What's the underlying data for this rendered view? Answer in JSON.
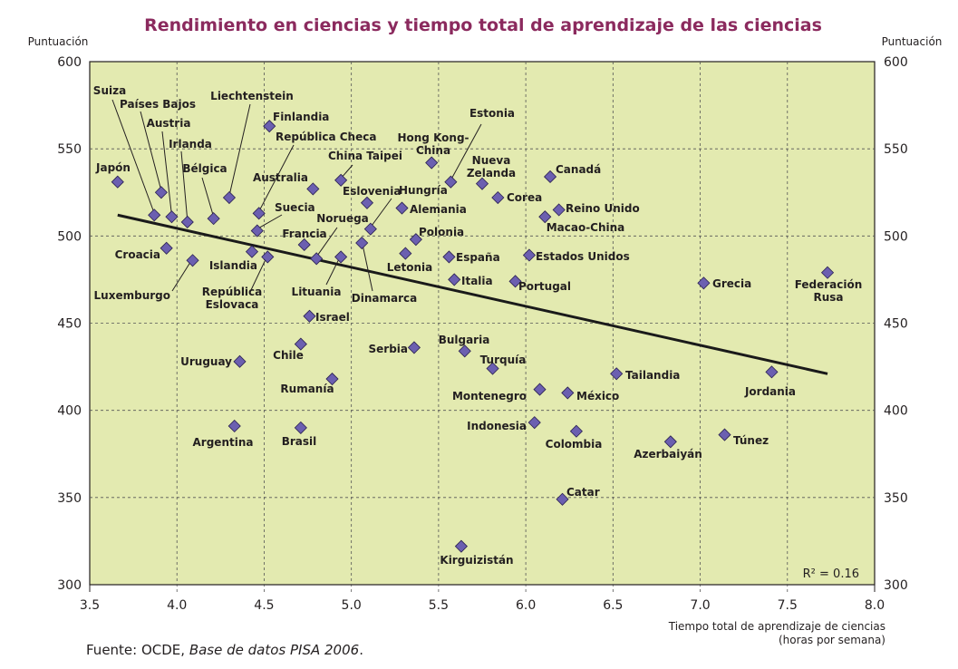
{
  "chart_data": {
    "type": "scatter",
    "title": "Rendimiento en ciencias y tiempo total de aprendizaje de las ciencias",
    "ylabel_left": "Puntuación",
    "ylabel_right": "Puntuación",
    "xlabel": "Tiempo total de aprendizaje de ciencias",
    "xlabel_sub": "(horas por semana)",
    "xlim": [
      3.5,
      8.0
    ],
    "ylim": [
      300,
      600
    ],
    "xticks": [
      "3.5",
      "4.0",
      "4.5",
      "5.0",
      "5.5",
      "6.0",
      "6.5",
      "7.0",
      "7.5",
      "8.0"
    ],
    "yticks": [
      "300",
      "350",
      "400",
      "450",
      "500",
      "550",
      "600"
    ],
    "grid": true,
    "annotation": "R² = 0.16",
    "trendline": {
      "x": [
        3.66,
        7.73
      ],
      "y": [
        512,
        421
      ]
    },
    "colors": {
      "background": "#e3eab0",
      "marker": "#6b5fb0",
      "marker_edge": "#2a2050",
      "title": "#8b2a5e",
      "trend": "#1a1a1a"
    },
    "points": [
      {
        "label": "Japón",
        "x": 3.66,
        "y": 531
      },
      {
        "label": "Suiza",
        "x": 3.87,
        "y": 512
      },
      {
        "label": "Países Bajos",
        "x": 3.91,
        "y": 525
      },
      {
        "label": "Austria",
        "x": 3.97,
        "y": 511
      },
      {
        "label": "Irlanda",
        "x": 4.06,
        "y": 508
      },
      {
        "label": "Bélgica",
        "x": 4.21,
        "y": 510
      },
      {
        "label": "Liechtenstein",
        "x": 4.3,
        "y": 522
      },
      {
        "label": "Finlandia",
        "x": 4.53,
        "y": 563
      },
      {
        "label": "República Checa",
        "x": 4.47,
        "y": 513
      },
      {
        "label": "Suecia",
        "x": 4.46,
        "y": 503
      },
      {
        "label": "Croacia",
        "x": 3.94,
        "y": 493
      },
      {
        "label": "Luxemburgo",
        "x": 4.09,
        "y": 486
      },
      {
        "label": "Islandia",
        "x": 4.43,
        "y": 491
      },
      {
        "label": "República\nEslovaca",
        "x": 4.52,
        "y": 488
      },
      {
        "label": "Australia",
        "x": 4.78,
        "y": 527
      },
      {
        "label": "Francia",
        "x": 4.73,
        "y": 495
      },
      {
        "label": "Noruega",
        "x": 4.8,
        "y": 487
      },
      {
        "label": "Lituania",
        "x": 4.94,
        "y": 488
      },
      {
        "label": "China Taipei",
        "x": 4.94,
        "y": 532
      },
      {
        "label": "Eslovenia",
        "x": 5.09,
        "y": 519
      },
      {
        "label": "Dinamarca",
        "x": 5.06,
        "y": 496
      },
      {
        "label": "Hungría",
        "x": 5.11,
        "y": 504
      },
      {
        "label": "Alemania",
        "x": 5.29,
        "y": 516
      },
      {
        "label": "Hong Kong-\nChina",
        "x": 5.46,
        "y": 542
      },
      {
        "label": "Polonia",
        "x": 5.37,
        "y": 498
      },
      {
        "label": "Letonia",
        "x": 5.31,
        "y": 490
      },
      {
        "label": "Estonia",
        "x": 5.57,
        "y": 531
      },
      {
        "label": "Nueva\nZelanda",
        "x": 5.75,
        "y": 530
      },
      {
        "label": "Corea",
        "x": 5.84,
        "y": 522
      },
      {
        "label": "España",
        "x": 5.56,
        "y": 488
      },
      {
        "label": "Italia",
        "x": 5.59,
        "y": 475
      },
      {
        "label": "Israel",
        "x": 4.76,
        "y": 454
      },
      {
        "label": "Chile",
        "x": 4.71,
        "y": 438
      },
      {
        "label": "Uruguay",
        "x": 4.36,
        "y": 428
      },
      {
        "label": "Rumanía",
        "x": 4.89,
        "y": 418
      },
      {
        "label": "Argentina",
        "x": 4.33,
        "y": 391
      },
      {
        "label": "Brasil",
        "x": 4.71,
        "y": 390
      },
      {
        "label": "Serbia",
        "x": 5.36,
        "y": 436
      },
      {
        "label": "Bulgaria",
        "x": 5.65,
        "y": 434
      },
      {
        "label": "Turquía",
        "x": 5.81,
        "y": 424
      },
      {
        "label": "Canadá",
        "x": 6.14,
        "y": 534
      },
      {
        "label": "Reino Unido",
        "x": 6.19,
        "y": 515
      },
      {
        "label": "Macao-China",
        "x": 6.11,
        "y": 511
      },
      {
        "label": "Estados Unidos",
        "x": 6.02,
        "y": 489
      },
      {
        "label": "Portugal",
        "x": 5.94,
        "y": 474
      },
      {
        "label": "Montenegro",
        "x": 6.08,
        "y": 412
      },
      {
        "label": "México",
        "x": 6.24,
        "y": 410
      },
      {
        "label": "Indonesia",
        "x": 6.05,
        "y": 393
      },
      {
        "label": "Colombia",
        "x": 6.29,
        "y": 388
      },
      {
        "label": "Catar",
        "x": 6.21,
        "y": 349
      },
      {
        "label": "Kirguizistán",
        "x": 5.63,
        "y": 322
      },
      {
        "label": "Tailandia",
        "x": 6.52,
        "y": 421
      },
      {
        "label": "Azerbaiyán",
        "x": 6.83,
        "y": 382
      },
      {
        "label": "Grecia",
        "x": 7.02,
        "y": 473
      },
      {
        "label": "Túnez",
        "x": 7.14,
        "y": 386
      },
      {
        "label": "Jordania",
        "x": 7.41,
        "y": 422
      },
      {
        "label": "Federación\nRusa",
        "x": 7.73,
        "y": 479
      }
    ]
  },
  "source": {
    "prefix": "Fuente: OCDE, ",
    "italic": "Base de datos PISA 2006",
    "suffix": "."
  }
}
